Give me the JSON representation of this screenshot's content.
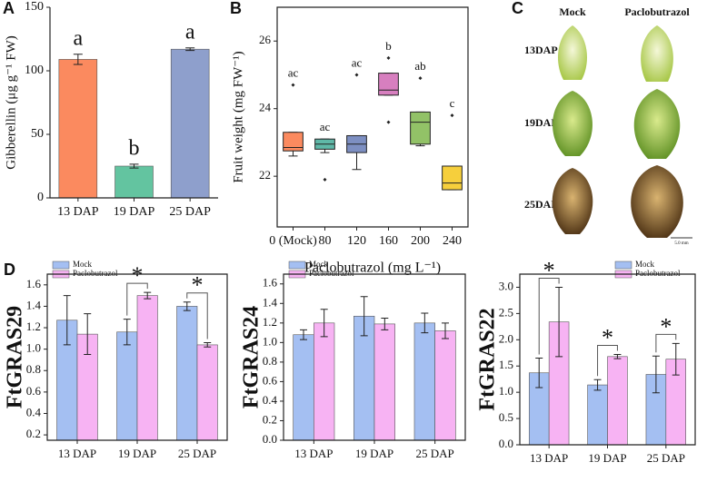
{
  "chart_data": [
    {
      "panel": "A",
      "type": "bar",
      "ylabel": "Gibberellin (μg g⁻¹ FW)",
      "categories": [
        "13 DAP",
        "19 DAP",
        "25 DAP"
      ],
      "values": [
        109,
        25,
        117
      ],
      "errors": [
        4,
        1.5,
        1
      ],
      "annotations": [
        "a",
        "b",
        "a"
      ],
      "colors": [
        "#fb8a5f",
        "#63c4a0",
        "#8e9fcc"
      ],
      "ylim": [
        0,
        150
      ],
      "yticks": [
        0,
        50,
        100,
        150
      ]
    },
    {
      "panel": "B",
      "type": "box",
      "ylabel": "Fruit weight (mg FW⁻¹)",
      "xlabel": "Paclobutrazol (mg L⁻¹)",
      "categories": [
        "0 (Mock)",
        "80",
        "120",
        "160",
        "200",
        "240"
      ],
      "boxes": [
        {
          "min": 22.6,
          "q1": 22.75,
          "median": 22.85,
          "q3": 23.3,
          "max": 23.3,
          "outliers": [
            24.7
          ]
        },
        {
          "min": 22.7,
          "q1": 22.8,
          "median": 22.95,
          "q3": 23.1,
          "max": 23.1,
          "outliers": [
            21.9
          ]
        },
        {
          "min": 22.2,
          "q1": 22.7,
          "median": 22.95,
          "q3": 23.2,
          "max": 23.2,
          "outliers": [
            25.0
          ]
        },
        {
          "min": 24.4,
          "q1": 24.4,
          "median": 24.55,
          "q3": 25.05,
          "max": 25.05,
          "outliers": [
            25.5,
            23.6
          ]
        },
        {
          "min": 22.9,
          "q1": 22.95,
          "median": 23.6,
          "q3": 23.9,
          "max": 23.9,
          "outliers": [
            24.9
          ]
        },
        {
          "min": 21.6,
          "q1": 21.6,
          "median": 21.8,
          "q3": 22.3,
          "max": 22.3,
          "outliers": [
            23.8
          ]
        }
      ],
      "annotations": [
        "ac",
        "ac",
        "ac",
        "b",
        "ab",
        "c"
      ],
      "colors": [
        "#fb8a5f",
        "#5fb8a8",
        "#7d8fc2",
        "#d77fbf",
        "#92c267",
        "#f6cf3c"
      ],
      "ylim": [
        20.5,
        27
      ],
      "yticks": [
        22,
        24,
        26
      ]
    },
    {
      "panel": "D",
      "type": "grouped_bar",
      "ylabel": "FtGRAS29",
      "categories": [
        "13 DAP",
        "19 DAP",
        "25 DAP"
      ],
      "series": [
        {
          "name": "Mock",
          "color": "#a4bff2",
          "values": [
            1.27,
            1.16,
            1.4
          ],
          "errors": [
            0.23,
            0.12,
            0.04
          ]
        },
        {
          "name": "Paclobutrazol",
          "color": "#f7b3f3",
          "values": [
            1.14,
            1.5,
            1.04
          ],
          "errors": [
            0.19,
            0.03,
            0.02
          ]
        }
      ],
      "significance": [
        null,
        "*",
        "*"
      ],
      "legend": "upper-left",
      "ylim": [
        0.15,
        1.7
      ],
      "yticks": [
        0.2,
        0.4,
        0.6,
        0.8,
        {
          "value": 1,
          "label": "1.0"
        },
        1.2,
        1.4,
        1.6
      ]
    },
    {
      "type": "grouped_bar",
      "ylabel": "FtGRAS24",
      "categories": [
        "13 DAP",
        "19 DAP",
        "25 DAP"
      ],
      "series": [
        {
          "name": "Mock",
          "color": "#a4bff2",
          "values": [
            1.08,
            1.27,
            1.2
          ],
          "errors": [
            0.05,
            0.2,
            0.1
          ]
        },
        {
          "name": "Paclobutrazol",
          "color": "#f7b3f3",
          "values": [
            1.2,
            1.19,
            1.12
          ],
          "errors": [
            0.14,
            0.06,
            0.08
          ]
        }
      ],
      "significance": [
        null,
        null,
        null
      ],
      "legend": "upper-left",
      "ylim": [
        0,
        1.7
      ],
      "yticks": [
        {
          "value": 0,
          "label": "0.0"
        },
        0.2,
        0.4,
        0.6,
        0.8,
        {
          "value": 1,
          "label": "1.0"
        },
        1.2,
        1.4,
        1.6
      ]
    },
    {
      "type": "grouped_bar",
      "ylabel": "FtGRAS22",
      "categories": [
        "13 DAP",
        "19 DAP",
        "25 DAP"
      ],
      "series": [
        {
          "name": "Mock",
          "color": "#a4bff2",
          "values": [
            1.37,
            1.14,
            1.34
          ],
          "errors": [
            0.28,
            0.1,
            0.35
          ]
        },
        {
          "name": "Paclobutrazol",
          "color": "#f7b3f3",
          "values": [
            2.34,
            1.68,
            1.63
          ],
          "errors": [
            0.66,
            0.04,
            0.3
          ]
        }
      ],
      "significance": [
        "*",
        "*",
        "*"
      ],
      "legend": "upper-right",
      "ylim": [
        0,
        3.25
      ],
      "yticks": [
        {
          "value": 0,
          "label": "0.0"
        },
        0.5,
        {
          "value": 1,
          "label": "1.0"
        },
        1.5,
        {
          "value": 2,
          "label": "2.0"
        },
        2.5,
        {
          "value": 3,
          "label": "3.0"
        }
      ]
    }
  ],
  "photos": {
    "panel": "C",
    "columns": [
      "Mock",
      "Paclobutrazol"
    ],
    "rows": [
      "13DAP",
      "19DAP",
      "25DAP"
    ],
    "scale_bar": "5.0 mm"
  }
}
